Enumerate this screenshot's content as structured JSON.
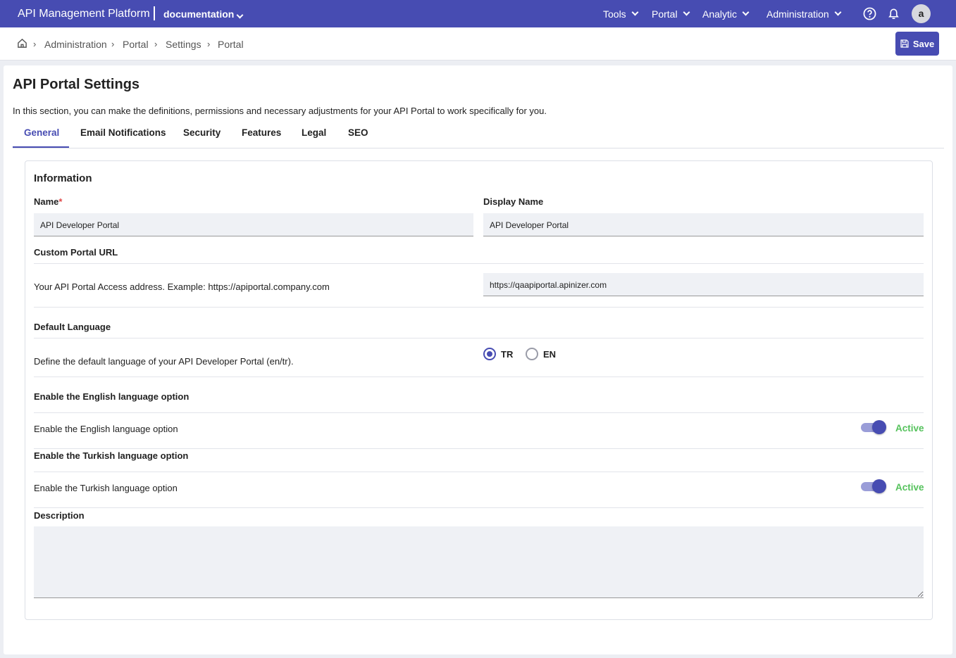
{
  "header": {
    "brand": "API Management Platform",
    "workspace": "documentation",
    "nav": [
      "Tools",
      "Portal",
      "Analytic",
      "Administration"
    ],
    "avatar": "a"
  },
  "breadcrumb": [
    "Administration",
    "Portal",
    "Settings",
    "Portal"
  ],
  "save_label": "Save",
  "page": {
    "title": "API Portal Settings",
    "intro": "In this section, you can make the definitions, permissions and necessary adjustments for your API Portal to work specifically for you."
  },
  "tabs": [
    "General",
    "Email Notifications",
    "Security",
    "Features",
    "Legal",
    "SEO"
  ],
  "form": {
    "section": "Information",
    "name_label": "Name",
    "required": "*",
    "name_value": "API Developer Portal",
    "display_label": "Display Name",
    "display_value": "API Developer Portal",
    "url_label": "Custom Portal URL",
    "url_help": "Your API Portal Access address. Example: https://apiportal.company.com",
    "url_value": "https://qaapiportal.apinizer.com",
    "lang_label": "Default Language",
    "lang_help": "Define the default language of your API Developer Portal (en/tr).",
    "lang_options": [
      "TR",
      "EN"
    ],
    "lang_selected": "TR",
    "en_label": "Enable the English language option",
    "en_help": "Enable the English language option",
    "en_status": "Active",
    "tr_label": "Enable the Turkish language option",
    "tr_help": "Enable the Turkish language option",
    "tr_status": "Active",
    "desc_label": "Description",
    "desc_value": ""
  },
  "colors": {
    "primary": "#474cb2",
    "active": "#55c25c"
  }
}
